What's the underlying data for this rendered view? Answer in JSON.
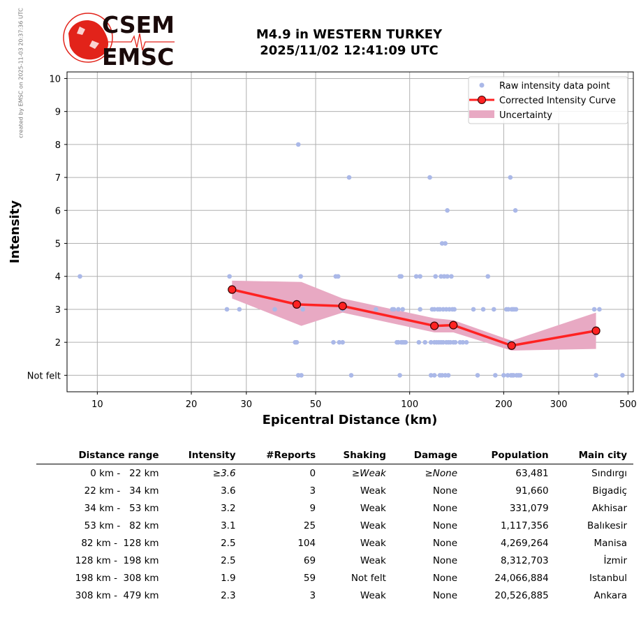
{
  "side_note": "created by EMSC on 2025-11-03 20:37:36 UTC",
  "logo": {
    "line1": "CSEM",
    "line2": "EMSC",
    "color": "#e2231a"
  },
  "title": {
    "line1": "M4.9 in WESTERN TURKEY",
    "line2": "2025/11/02 12:41:09 UTC"
  },
  "chart_data": {
    "type": "scatter",
    "xlabel": "Epicentral Distance (km)",
    "ylabel": "Intensity",
    "x_scale": "log",
    "xlim": [
      8,
      520
    ],
    "ylim": [
      0.5,
      10.2
    ],
    "x_ticks": [
      10,
      20,
      30,
      50,
      100,
      200,
      300,
      500
    ],
    "y_ticks": [
      1,
      2,
      3,
      4,
      5,
      6,
      7,
      8,
      9,
      10
    ],
    "y_tick_labels": [
      "Not felt",
      "2",
      "3",
      "4",
      "5",
      "6",
      "7",
      "8",
      "9",
      "10"
    ],
    "grid": true,
    "legend_position": "top-right",
    "legend": [
      "Raw intensity data point",
      "Corrected Intensity Curve",
      "Uncertainty"
    ],
    "colors": {
      "raw": "#aab8e8",
      "curve": "#ff2222",
      "marker_edge": "#330000",
      "uncertainty": "#e8a9c3",
      "grid": "#b0b0b0"
    },
    "raw_points": [
      [
        8.8,
        4
      ],
      [
        26.5,
        4
      ],
      [
        26,
        3
      ],
      [
        28.5,
        3
      ],
      [
        37,
        3
      ],
      [
        43,
        2
      ],
      [
        43.5,
        2
      ],
      [
        44,
        1
      ],
      [
        44.8,
        4
      ],
      [
        45,
        1
      ],
      [
        45.5,
        3
      ],
      [
        44,
        8
      ],
      [
        57,
        2
      ],
      [
        58,
        4
      ],
      [
        59,
        4
      ],
      [
        59.5,
        2
      ],
      [
        61,
        2
      ],
      [
        61,
        3
      ],
      [
        64,
        7
      ],
      [
        65,
        1
      ],
      [
        78,
        3
      ],
      [
        88,
        3
      ],
      [
        89,
        3
      ],
      [
        91,
        2
      ],
      [
        92,
        2
      ],
      [
        92,
        3
      ],
      [
        93,
        1
      ],
      [
        93,
        4
      ],
      [
        94,
        4
      ],
      [
        94,
        2
      ],
      [
        95,
        2
      ],
      [
        95,
        3
      ],
      [
        96,
        2
      ],
      [
        97,
        2
      ],
      [
        105,
        4
      ],
      [
        107,
        2
      ],
      [
        108,
        4
      ],
      [
        108,
        3
      ],
      [
        112,
        2
      ],
      [
        116,
        7
      ],
      [
        117,
        1
      ],
      [
        117,
        2
      ],
      [
        118,
        3
      ],
      [
        120,
        2
      ],
      [
        120,
        1
      ],
      [
        120,
        3
      ],
      [
        121,
        4
      ],
      [
        122,
        2
      ],
      [
        123,
        3
      ],
      [
        124,
        2
      ],
      [
        125,
        3
      ],
      [
        125,
        1
      ],
      [
        126,
        2
      ],
      [
        126,
        4
      ],
      [
        127,
        5
      ],
      [
        127,
        1
      ],
      [
        128,
        3
      ],
      [
        128,
        2
      ],
      [
        129,
        4
      ],
      [
        130,
        5
      ],
      [
        130,
        1
      ],
      [
        131,
        2
      ],
      [
        131,
        3
      ],
      [
        132,
        6
      ],
      [
        132,
        4
      ],
      [
        133,
        2
      ],
      [
        133,
        1
      ],
      [
        134,
        3
      ],
      [
        135,
        2
      ],
      [
        136,
        4
      ],
      [
        137,
        3
      ],
      [
        138,
        2
      ],
      [
        139,
        3
      ],
      [
        140,
        2
      ],
      [
        145,
        2
      ],
      [
        148,
        2
      ],
      [
        152,
        2
      ],
      [
        160,
        3
      ],
      [
        165,
        1
      ],
      [
        172,
        3
      ],
      [
        178,
        4
      ],
      [
        186,
        3
      ],
      [
        188,
        1
      ],
      [
        200,
        1
      ],
      [
        204,
        3
      ],
      [
        206,
        1
      ],
      [
        207,
        3
      ],
      [
        209,
        2
      ],
      [
        210,
        7
      ],
      [
        211,
        1
      ],
      [
        212,
        3
      ],
      [
        213,
        1
      ],
      [
        214,
        3
      ],
      [
        215,
        1
      ],
      [
        216,
        3
      ],
      [
        218,
        6
      ],
      [
        219,
        3
      ],
      [
        220,
        1
      ],
      [
        223,
        1
      ],
      [
        226,
        1
      ],
      [
        390,
        3
      ],
      [
        395,
        1
      ],
      [
        405,
        3
      ],
      [
        480,
        1
      ]
    ],
    "curve": {
      "x": [
        27,
        43.5,
        61,
        120,
        138,
        212,
        395
      ],
      "y": [
        3.6,
        3.15,
        3.1,
        2.5,
        2.52,
        1.9,
        2.35
      ]
    },
    "uncertainty": {
      "x": [
        27,
        45,
        61,
        120,
        138,
        212,
        395
      ],
      "upper": [
        3.87,
        3.83,
        3.33,
        2.73,
        2.67,
        2.05,
        2.9
      ],
      "lower": [
        3.33,
        2.5,
        2.9,
        2.3,
        2.3,
        1.75,
        1.8
      ]
    }
  },
  "table": {
    "headers": [
      "Distance range",
      "Intensity",
      "#Reports",
      "Shaking",
      "Damage",
      "Population",
      "Main city"
    ],
    "rows": [
      [
        "  0 km -   22 km",
        "≥3.6",
        "0",
        "≥Weak",
        "≥None",
        "63,481",
        "Sındırgı"
      ],
      [
        " 22 km -   34 km",
        "3.6",
        "3",
        "Weak",
        "None",
        "91,660",
        "Bigadiç"
      ],
      [
        " 34 km -   53 km",
        "3.2",
        "9",
        "Weak",
        "None",
        "331,079",
        "Akhisar"
      ],
      [
        " 53 km -   82 km",
        "3.1",
        "25",
        "Weak",
        "None",
        "1,117,356",
        "Balıkesir"
      ],
      [
        " 82 km -  128 km",
        "2.5",
        "104",
        "Weak",
        "None",
        "4,269,264",
        "Manisa"
      ],
      [
        "128 km -  198 km",
        "2.5",
        "69",
        "Weak",
        "None",
        "8,312,703",
        "İzmir"
      ],
      [
        "198 km -  308 km",
        "1.9",
        "59",
        "Not felt",
        "None",
        "24,066,884",
        "Istanbul"
      ],
      [
        "308 km -  479 km",
        "2.3",
        "3",
        "Weak",
        "None",
        "20,526,885",
        "Ankara"
      ]
    ]
  }
}
